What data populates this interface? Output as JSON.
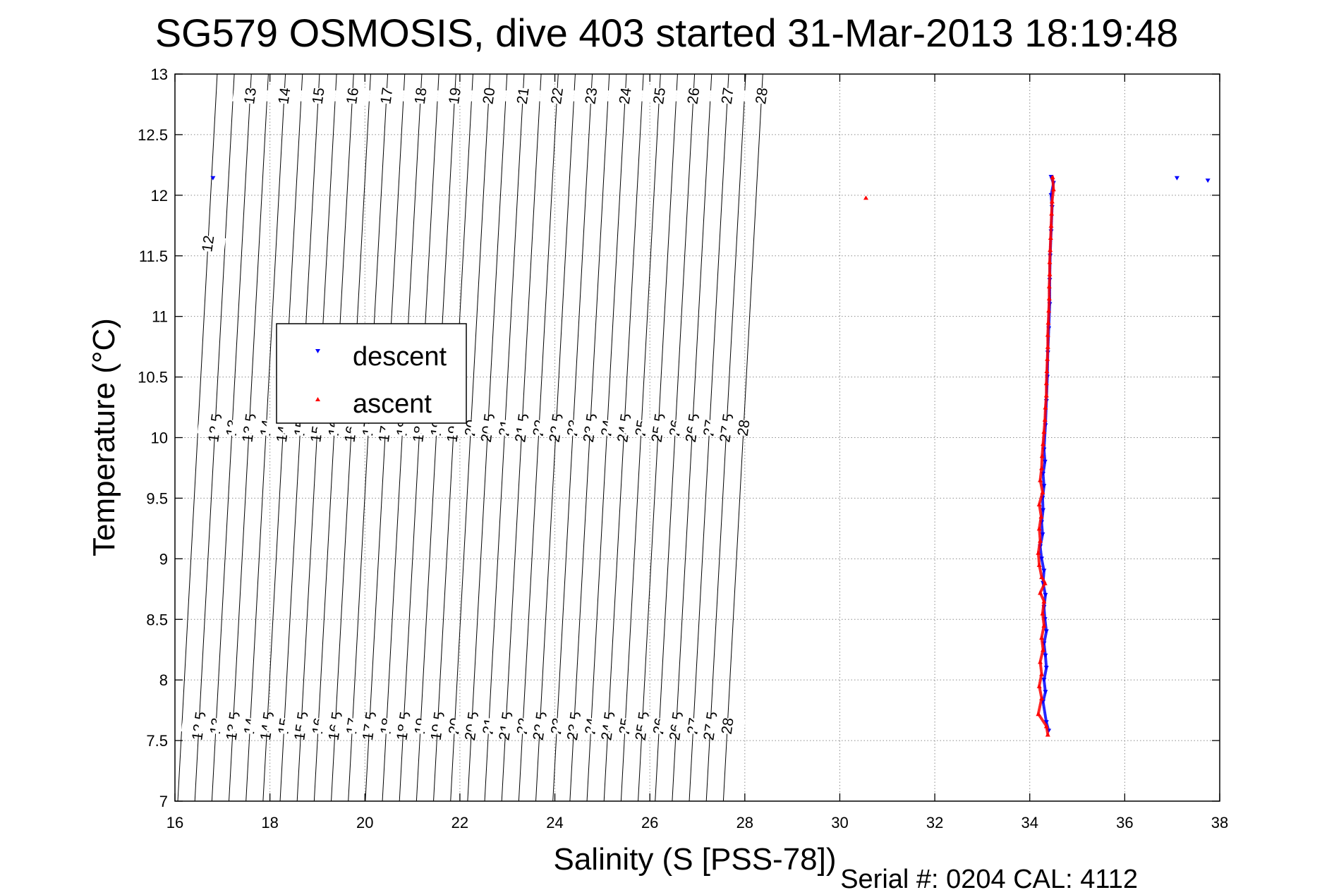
{
  "chart_data": {
    "type": "scatter",
    "title": "SG579 OSMOSIS, dive 403 started 31-Mar-2013 18:19:48",
    "xlabel": "Salinity (S [PSS-78])",
    "ylabel": "Temperature (°C)",
    "xlim": [
      16,
      38
    ],
    "ylim": [
      7,
      13
    ],
    "xticks": [
      16,
      18,
      20,
      22,
      24,
      26,
      28,
      30,
      32,
      34,
      36,
      38
    ],
    "xtick_labels": [
      "16",
      "18",
      "20",
      "22",
      "24",
      "26",
      "28",
      "30",
      "32",
      "34",
      "36",
      "38"
    ],
    "yticks": [
      7,
      7.5,
      8,
      8.5,
      9,
      9.5,
      10,
      10.5,
      11,
      11.5,
      12,
      12.5,
      13
    ],
    "ytick_labels": [
      "7",
      "7.5",
      "8",
      "8.5",
      "9",
      "9.5",
      "10",
      "10.5",
      "11",
      "11.5",
      "12",
      "12.5",
      "13"
    ],
    "grid": true,
    "legend_position": "left-middle",
    "footer": "Serial #: 0204  CAL: 4112",
    "isopycnals": {
      "top_labels": [
        "12",
        "13",
        "14",
        "15",
        "16",
        "17",
        "18",
        "19",
        "20",
        "21",
        "22",
        "23",
        "24",
        "25",
        "26",
        "27",
        "28"
      ],
      "mid_labels": [
        "12.5",
        "13",
        "13.5",
        "14",
        "14.5",
        "15",
        "15.5",
        "16",
        "16.5",
        "17",
        "17.5",
        "18",
        "18.5",
        "19",
        "19.5",
        "20",
        "20.5",
        "21",
        "21.5",
        "22",
        "22.5",
        "23",
        "23.5",
        "24",
        "24.5",
        "25",
        "25.5",
        "26",
        "26.5",
        "27",
        "27.5",
        "28"
      ],
      "bottom_labels": [
        "12.5",
        "13",
        "13.5",
        "14",
        "14.5",
        "15",
        "15.5",
        "16",
        "16.5",
        "17",
        "17.5",
        "18",
        "18.5",
        "19",
        "19.5",
        "20",
        "20.5",
        "21",
        "21.5",
        "22",
        "22.5",
        "23",
        "23.5",
        "24",
        "24.5",
        "25",
        "25.5",
        "26",
        "26.5",
        "27",
        "27.5",
        "28"
      ]
    },
    "series": [
      {
        "name": "descent",
        "color": "#0000ff",
        "marker": "triangle-down",
        "points": [
          [
            16.8,
            12.14
          ],
          [
            37.1,
            12.14
          ],
          [
            37.75,
            12.12
          ],
          [
            34.45,
            12.15
          ],
          [
            34.5,
            12.1
          ],
          [
            34.45,
            12.0
          ],
          [
            34.47,
            11.9
          ],
          [
            34.45,
            11.7
          ],
          [
            34.43,
            11.5
          ],
          [
            34.42,
            11.3
          ],
          [
            34.42,
            11.1
          ],
          [
            34.4,
            10.9
          ],
          [
            34.38,
            10.7
          ],
          [
            34.37,
            10.5
          ],
          [
            34.35,
            10.3
          ],
          [
            34.33,
            10.1
          ],
          [
            34.3,
            9.9
          ],
          [
            34.32,
            9.8
          ],
          [
            34.28,
            9.7
          ],
          [
            34.3,
            9.6
          ],
          [
            34.27,
            9.5
          ],
          [
            34.28,
            9.4
          ],
          [
            34.25,
            9.3
          ],
          [
            34.27,
            9.2
          ],
          [
            34.22,
            9.1
          ],
          [
            34.25,
            9.0
          ],
          [
            34.3,
            8.9
          ],
          [
            34.28,
            8.8
          ],
          [
            34.33,
            8.7
          ],
          [
            34.3,
            8.6
          ],
          [
            34.32,
            8.5
          ],
          [
            34.35,
            8.4
          ],
          [
            34.3,
            8.3
          ],
          [
            34.33,
            8.2
          ],
          [
            34.35,
            8.1
          ],
          [
            34.3,
            8.0
          ],
          [
            34.33,
            7.9
          ],
          [
            34.28,
            7.82
          ],
          [
            34.35,
            7.65
          ],
          [
            34.4,
            7.58
          ]
        ]
      },
      {
        "name": "ascent",
        "color": "#ff0000",
        "marker": "triangle-up",
        "points": [
          [
            30.55,
            11.98
          ],
          [
            34.48,
            12.15
          ],
          [
            34.5,
            12.05
          ],
          [
            34.47,
            11.95
          ],
          [
            34.46,
            11.85
          ],
          [
            34.45,
            11.75
          ],
          [
            34.44,
            11.65
          ],
          [
            34.43,
            11.55
          ],
          [
            34.42,
            11.45
          ],
          [
            34.42,
            11.35
          ],
          [
            34.41,
            11.25
          ],
          [
            34.41,
            11.15
          ],
          [
            34.4,
            11.05
          ],
          [
            34.39,
            10.95
          ],
          [
            34.38,
            10.85
          ],
          [
            34.38,
            10.75
          ],
          [
            34.37,
            10.65
          ],
          [
            34.36,
            10.55
          ],
          [
            34.35,
            10.45
          ],
          [
            34.35,
            10.35
          ],
          [
            34.33,
            10.25
          ],
          [
            34.32,
            10.15
          ],
          [
            34.3,
            10.05
          ],
          [
            34.28,
            9.95
          ],
          [
            34.26,
            9.85
          ],
          [
            34.25,
            9.75
          ],
          [
            34.22,
            9.65
          ],
          [
            34.27,
            9.55
          ],
          [
            34.2,
            9.45
          ],
          [
            34.24,
            9.35
          ],
          [
            34.2,
            9.25
          ],
          [
            34.22,
            9.15
          ],
          [
            34.18,
            9.05
          ],
          [
            34.2,
            8.95
          ],
          [
            34.25,
            8.85
          ],
          [
            34.32,
            8.8
          ],
          [
            34.22,
            8.72
          ],
          [
            34.3,
            8.65
          ],
          [
            34.27,
            8.55
          ],
          [
            34.3,
            8.45
          ],
          [
            34.25,
            8.35
          ],
          [
            34.28,
            8.25
          ],
          [
            34.22,
            8.15
          ],
          [
            34.25,
            8.05
          ],
          [
            34.2,
            7.95
          ],
          [
            34.25,
            7.85
          ],
          [
            34.18,
            7.72
          ],
          [
            34.35,
            7.62
          ],
          [
            34.38,
            7.55
          ]
        ]
      }
    ]
  }
}
